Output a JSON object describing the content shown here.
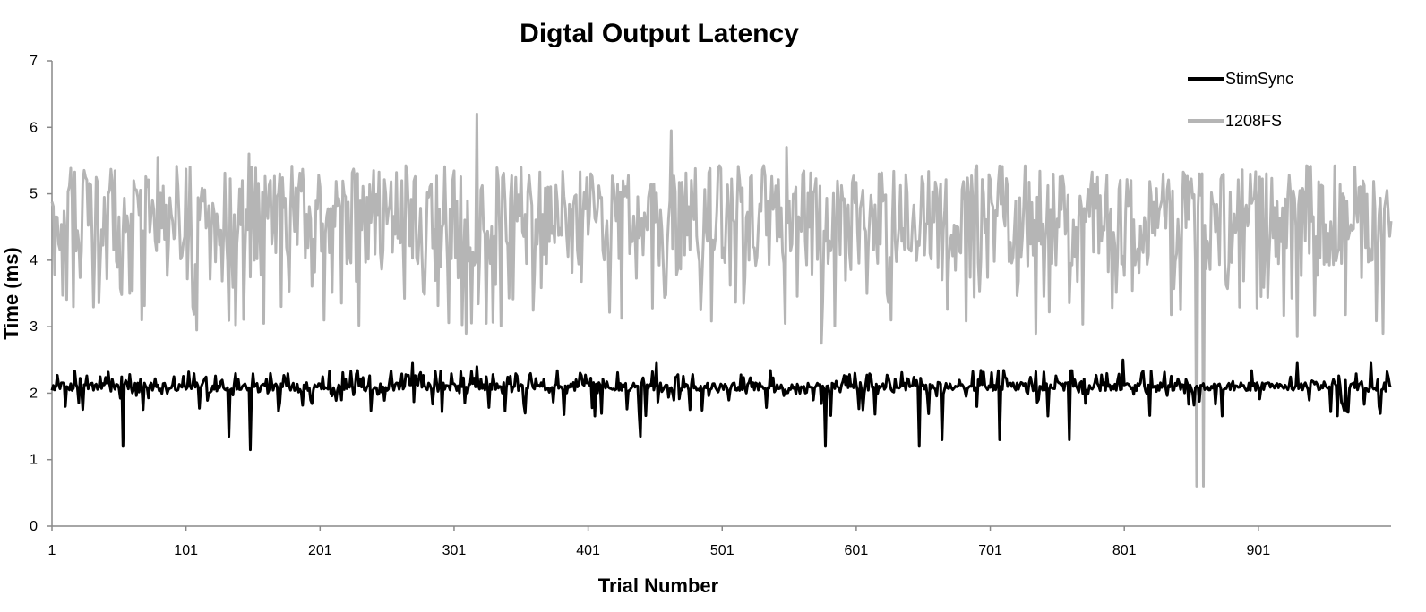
{
  "chart_data": {
    "type": "line",
    "title": "Digtal Output Latency",
    "xlabel": "Trial Number",
    "ylabel": "Time (ms)",
    "xlim": [
      1,
      1000
    ],
    "ylim": [
      0,
      7
    ],
    "yticks": [
      0,
      1,
      2,
      3,
      4,
      5,
      6,
      7
    ],
    "xtick_labels": [
      "1",
      "101",
      "201",
      "301",
      "401",
      "501",
      "601",
      "701",
      "801",
      "901"
    ],
    "grid": false,
    "legend_position": "top-right",
    "series": [
      {
        "name": "StimSync",
        "color": "#000000",
        "baseline": 2.1,
        "jitter": 0.12,
        "spikes": [
          [
            54,
            1.2
          ],
          [
            133,
            1.35
          ],
          [
            149,
            1.15
          ],
          [
            440,
            1.35
          ],
          [
            578,
            1.2
          ],
          [
            648,
            1.2
          ],
          [
            665,
            1.3
          ],
          [
            708,
            1.3
          ],
          [
            760,
            1.3
          ],
          [
            800,
            2.5
          ],
          [
            318,
            2.4
          ],
          [
            452,
            2.45
          ],
          [
            270,
            2.45
          ],
          [
            930,
            2.45
          ],
          [
            985,
            2.45
          ]
        ]
      },
      {
        "name": "1208FS",
        "color": "#b5b5b5",
        "baseline": 4.6,
        "jitter": 0.55,
        "spikes": [
          [
            318,
            6.2
          ],
          [
            463,
            5.95
          ],
          [
            549,
            5.7
          ],
          [
            80,
            5.55
          ],
          [
            148,
            5.6
          ],
          [
            310,
            2.9
          ],
          [
            325,
            3.05
          ],
          [
            575,
            2.75
          ],
          [
            855,
            0.6
          ],
          [
            860,
            0.6
          ],
          [
            857,
            5.3
          ],
          [
            109,
            2.95
          ],
          [
            735,
            2.9
          ],
          [
            994,
            2.9
          ],
          [
            930,
            2.85
          ]
        ]
      }
    ]
  }
}
